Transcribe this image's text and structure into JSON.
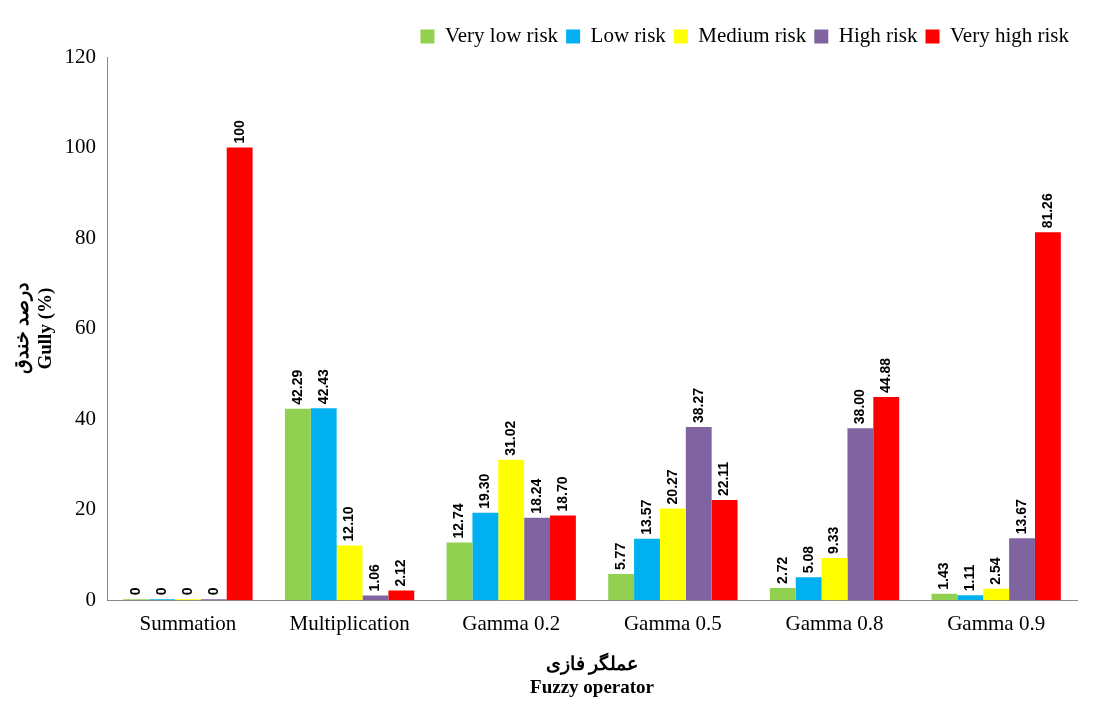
{
  "chart_data": {
    "type": "bar",
    "xlabel": "عملگر فازی\nFuzzy operator",
    "ylabel": "درصد خندق\nGully (%)",
    "categories": [
      "Summation",
      "Multiplication",
      "Gamma 0.2",
      "Gamma 0.5",
      "Gamma 0.8",
      "Gamma 0.9"
    ],
    "series": [
      {
        "name": "Very low risk",
        "color": "#92d050",
        "values": [
          0,
          42.29,
          12.74,
          5.77,
          2.72,
          1.43
        ],
        "value_labels": [
          "0",
          "42.29",
          "12.74",
          "5.77",
          "2.72",
          "1.43"
        ]
      },
      {
        "name": "Low risk",
        "color": "#00b0f0",
        "values": [
          0,
          42.43,
          19.3,
          13.57,
          5.08,
          1.11
        ],
        "value_labels": [
          "0",
          "42.43",
          "19.30",
          "13.57",
          "5.08",
          "1.11"
        ]
      },
      {
        "name": "Medium risk",
        "color": "#ffff00",
        "values": [
          0,
          12.1,
          31.02,
          20.27,
          9.33,
          2.54
        ],
        "value_labels": [
          "0",
          "12.10",
          "31.02",
          "20.27",
          "9.33",
          "2.54"
        ]
      },
      {
        "name": "High risk",
        "color": "#8064a2",
        "values": [
          0,
          1.06,
          18.24,
          38.27,
          38.0,
          13.67
        ],
        "value_labels": [
          "0",
          "1.06",
          "18.24",
          "38.27",
          "38.00",
          "13.67"
        ]
      },
      {
        "name": "Very high risk",
        "color": "#ff0000",
        "values": [
          100,
          2.12,
          18.7,
          22.11,
          44.88,
          81.26
        ],
        "value_labels": [
          "100",
          "2.12",
          "18.70",
          "22.11",
          "44.88",
          "81.26"
        ]
      }
    ],
    "ylim": [
      0,
      120
    ],
    "yticks": [
      0,
      20,
      40,
      60,
      80,
      100,
      120
    ],
    "grid": false,
    "legend": "top"
  }
}
